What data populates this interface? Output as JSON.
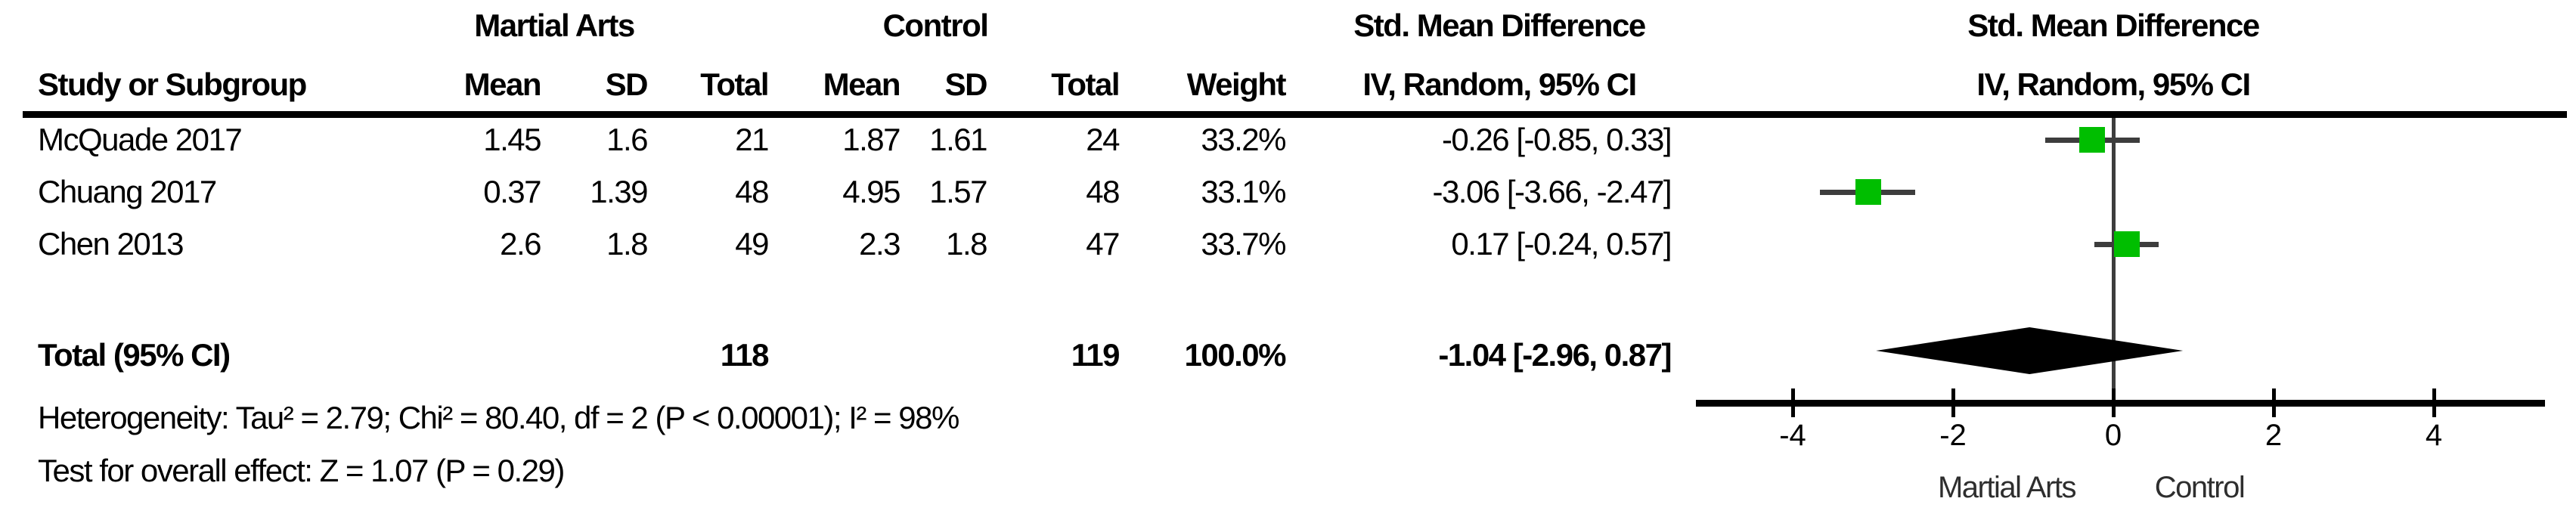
{
  "table": {
    "group_headers": {
      "experimental": "Martial Arts",
      "control": "Control",
      "smd_left": "Std. Mean Difference",
      "smd_right": "Std. Mean Difference"
    },
    "column_headers": {
      "study": "Study or Subgroup",
      "mean1": "Mean",
      "sd1": "SD",
      "total1": "Total",
      "mean2": "Mean",
      "sd2": "SD",
      "total2": "Total",
      "weight": "Weight",
      "ci_left": "IV, Random, 95% CI",
      "ci_right": "IV, Random, 95% CI"
    },
    "rows": [
      {
        "study": "McQuade 2017",
        "mean1": "1.45",
        "sd1": "1.6",
        "total1": "21",
        "mean2": "1.87",
        "sd2": "1.61",
        "total2": "24",
        "weight": "33.2%",
        "ci": "-0.26 [-0.85, 0.33]"
      },
      {
        "study": "Chuang 2017",
        "mean1": "0.37",
        "sd1": "1.39",
        "total1": "48",
        "mean2": "4.95",
        "sd2": "1.57",
        "total2": "48",
        "weight": "33.1%",
        "ci": "-3.06 [-3.66, -2.47]"
      },
      {
        "study": "Chen 2013",
        "mean1": "2.6",
        "sd1": "1.8",
        "total1": "49",
        "mean2": "2.3",
        "sd2": "1.8",
        "total2": "47",
        "weight": "33.7%",
        "ci": "0.17 [-0.24, 0.57]"
      }
    ],
    "total_row": {
      "label": "Total (95% CI)",
      "total1": "118",
      "total2": "119",
      "weight": "100.0%",
      "ci": "-1.04 [-2.96, 0.87]"
    },
    "heterogeneity": "Heterogeneity: Tau² = 2.79; Chi² = 80.40, df = 2 (P < 0.00001); I² = 98%",
    "overall_effect": "Test for overall effect: Z = 1.07 (P = 0.29)"
  },
  "chart_data": {
    "type": "forest",
    "title": "Std. Mean Difference, IV, Random, 95% CI",
    "x_axis": {
      "ticks": [
        -4,
        -2,
        0,
        2,
        4
      ],
      "tick_labels": [
        "-4",
        "-2",
        "0",
        "2",
        "4"
      ],
      "range": [
        -5.2,
        5.4
      ],
      "favours_left_label": "Martial Arts",
      "favours_right_label": "Control",
      "grid": false
    },
    "studies": [
      {
        "name": "McQuade 2017",
        "estimate": -0.26,
        "ci_lower": -0.85,
        "ci_upper": 0.33,
        "weight_pct": 33.2
      },
      {
        "name": "Chuang 2017",
        "estimate": -3.06,
        "ci_lower": -3.66,
        "ci_upper": -2.47,
        "weight_pct": 33.1
      },
      {
        "name": "Chen 2013",
        "estimate": 0.17,
        "ci_lower": -0.24,
        "ci_upper": 0.57,
        "weight_pct": 33.7
      }
    ],
    "total": {
      "estimate": -1.04,
      "ci_lower": -2.96,
      "ci_upper": 0.87
    },
    "colors": {
      "marker": "#00BE00",
      "ci_line": "#3d3d3d",
      "zero_line": "#3d3d3d",
      "diamond": "#000000",
      "axis": "#000000"
    }
  }
}
